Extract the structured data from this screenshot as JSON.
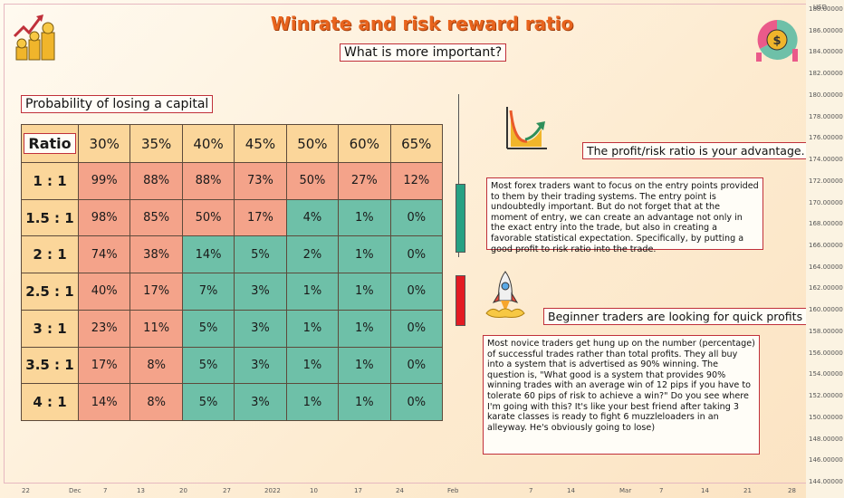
{
  "title": "Winrate and risk reward ratio",
  "subtitle": "What is more important?",
  "probability_label": "Probability of losing a capital",
  "profit_label": "The profit/risk ratio is your advantage.",
  "beginner_label": "Beginner traders are looking for quick profits",
  "text_block_1": "Most forex traders want to focus  on the entry points  provided to them by their trading systems. The entry point is undoubtedly important. But do not  forget that at the moment of entry, we can create an advantage not only in  the exact entry  into the trade, but also in creating a favorable statistical expectation.  Specifically, by putting a good profit to risk ratio into the trade.",
  "text_block_2": "Most novice traders get hung up on the number (percentage) of successful trades rather than total profits. They all buy into a system that is advertised as 90% winning. The question is, \"What good is a system that provides 90% winning trades with an average win of 12 pips if you have to tolerate 60 pips of risk to achieve a win?\" Do you see where I'm going with this? It's like your best friend after taking 3 karate classes is ready to fight 6 muzzleloaders in an alleyway. He's obviously going to lose)",
  "axis_currency": "USD",
  "price_ticks": [
    "188.00000",
    "186.00000",
    "184.00000",
    "182.00000",
    "180.00000",
    "178.00000",
    "176.00000",
    "174.00000",
    "172.00000",
    "170.00000",
    "168.00000",
    "166.00000",
    "164.00000",
    "162.00000",
    "160.00000",
    "158.00000",
    "156.00000",
    "154.00000",
    "152.00000",
    "150.00000",
    "148.00000",
    "146.00000",
    "144.00000"
  ],
  "date_ticks": [
    "22",
    "Dec",
    "7",
    "13",
    "20",
    "27",
    "2022",
    "10",
    "17",
    "24",
    "Feb",
    "7",
    "14",
    "Mar",
    "7",
    "14",
    "21",
    "28"
  ],
  "colors": {
    "high_risk": "#f4a38a",
    "low_risk": "#6ec0a8",
    "header": "#fbd69a",
    "title": "#e8641e",
    "frame": "#c0303a"
  },
  "icons": [
    "money-growth-icon",
    "dollar-chart-icon",
    "profit-chart-icon",
    "rocket-icon"
  ],
  "chart_data": {
    "type": "table",
    "corner_label": "Ratio",
    "columns": [
      "30%",
      "35%",
      "40%",
      "45%",
      "50%",
      "60%",
      "65%"
    ],
    "rows": [
      {
        "ratio": "1 : 1",
        "values": [
          "99%",
          "88%",
          "88%",
          "73%",
          "50%",
          "27%",
          "12%"
        ],
        "green_from": 7
      },
      {
        "ratio": "1.5 : 1",
        "values": [
          "98%",
          "85%",
          "50%",
          "17%",
          "4%",
          "1%",
          "0%"
        ],
        "green_from": 4
      },
      {
        "ratio": "2 : 1",
        "values": [
          "74%",
          "38%",
          "14%",
          "5%",
          "2%",
          "1%",
          "0%"
        ],
        "green_from": 2
      },
      {
        "ratio": "2.5 : 1",
        "values": [
          "40%",
          "17%",
          "7%",
          "3%",
          "1%",
          "1%",
          "0%"
        ],
        "green_from": 2
      },
      {
        "ratio": "3 : 1",
        "values": [
          "23%",
          "11%",
          "5%",
          "3%",
          "1%",
          "1%",
          "0%"
        ],
        "green_from": 2
      },
      {
        "ratio": "3.5 : 1",
        "values": [
          "17%",
          "8%",
          "5%",
          "3%",
          "1%",
          "1%",
          "0%"
        ],
        "green_from": 2
      },
      {
        "ratio": "4 : 1",
        "values": [
          "14%",
          "8%",
          "5%",
          "3%",
          "1%",
          "1%",
          "0%"
        ],
        "green_from": 2
      }
    ]
  }
}
